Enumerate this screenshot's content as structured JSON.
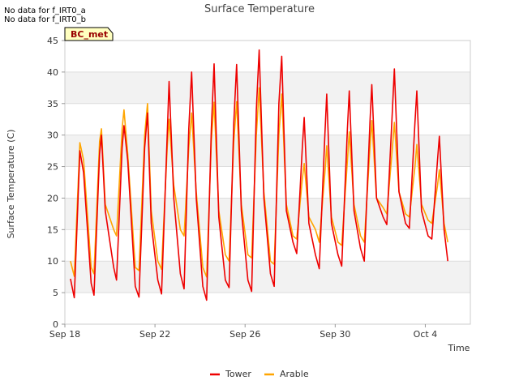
{
  "notes": [
    "No data for f_IRT0_a",
    "No data for f_IRT0_b"
  ],
  "badge": "BC_met",
  "colors": {
    "tower": "#ee0000",
    "arable": "#ffa500",
    "badge_bg": "#ffffc0",
    "badge_text": "#990000",
    "band": "#f2f2f2"
  },
  "chart_data": {
    "type": "line",
    "title": "Surface Temperature",
    "xlabel": "Time",
    "ylabel": "Surface Temperature (C)",
    "ylim": [
      0,
      45
    ],
    "yticks": [
      0,
      5,
      10,
      15,
      20,
      25,
      30,
      35,
      40,
      45
    ],
    "xlim": [
      "2023-09-18",
      "2023-10-06"
    ],
    "xticks": [
      {
        "date": "2023-09-18",
        "label": "Sep 18"
      },
      {
        "date": "2023-09-22",
        "label": "Sep 22"
      },
      {
        "date": "2023-09-26",
        "label": "Sep 26"
      },
      {
        "date": "2023-09-30",
        "label": "Sep 30"
      },
      {
        "date": "2023-10-04",
        "label": "Oct 4"
      }
    ],
    "grid": true,
    "legend": "bottom",
    "series": [
      {
        "name": "Tower",
        "color": "#ee0000",
        "points": [
          [
            "2023-09-18 06:00",
            7.2
          ],
          [
            "2023-09-18 10:00",
            4.2
          ],
          [
            "2023-09-18 16:00",
            27.5
          ],
          [
            "2023-09-18 20:00",
            24
          ],
          [
            "2023-09-19 04:00",
            6.5
          ],
          [
            "2023-09-19 07:00",
            4.6
          ],
          [
            "2023-09-19 13:00",
            27
          ],
          [
            "2023-09-19 15:00",
            30
          ],
          [
            "2023-09-19 19:00",
            18
          ],
          [
            "2023-09-20 04:00",
            9
          ],
          [
            "2023-09-20 07:00",
            7
          ],
          [
            "2023-09-20 13:00",
            28
          ],
          [
            "2023-09-20 15:00",
            31.5
          ],
          [
            "2023-09-20 19:00",
            26
          ],
          [
            "2023-09-21 03:00",
            6
          ],
          [
            "2023-09-21 07:00",
            4.3
          ],
          [
            "2023-09-21 13:00",
            28
          ],
          [
            "2023-09-21 16:00",
            33.5
          ],
          [
            "2023-09-21 20:00",
            16
          ],
          [
            "2023-09-22 03:00",
            7
          ],
          [
            "2023-09-22 07:00",
            4.8
          ],
          [
            "2023-09-22 13:00",
            30
          ],
          [
            "2023-09-22 15:00",
            38.5
          ],
          [
            "2023-09-22 20:00",
            20
          ],
          [
            "2023-09-23 03:00",
            8
          ],
          [
            "2023-09-23 07:00",
            5.6
          ],
          [
            "2023-09-23 12:00",
            31
          ],
          [
            "2023-09-23 15:00",
            40
          ],
          [
            "2023-09-23 20:00",
            20
          ],
          [
            "2023-09-24 03:00",
            6
          ],
          [
            "2023-09-24 07:00",
            3.8
          ],
          [
            "2023-09-24 12:00",
            31
          ],
          [
            "2023-09-24 15:00",
            41.3
          ],
          [
            "2023-09-24 20:00",
            17
          ],
          [
            "2023-09-25 03:00",
            7
          ],
          [
            "2023-09-25 07:00",
            5.8
          ],
          [
            "2023-09-25 12:00",
            32
          ],
          [
            "2023-09-25 15:00",
            41.2
          ],
          [
            "2023-09-25 20:00",
            18
          ],
          [
            "2023-09-26 03:00",
            7
          ],
          [
            "2023-09-26 07:00",
            5.2
          ],
          [
            "2023-09-26 12:00",
            34
          ],
          [
            "2023-09-26 15:00",
            43.5
          ],
          [
            "2023-09-26 20:00",
            20
          ],
          [
            "2023-09-27 03:00",
            8
          ],
          [
            "2023-09-27 07:00",
            6
          ],
          [
            "2023-09-27 12:00",
            35
          ],
          [
            "2023-09-27 15:00",
            42.5
          ],
          [
            "2023-09-27 20:00",
            18
          ],
          [
            "2023-09-28 03:00",
            13
          ],
          [
            "2023-09-28 07:00",
            11.2
          ],
          [
            "2023-09-28 13:00",
            28
          ],
          [
            "2023-09-28 15:00",
            32.8
          ],
          [
            "2023-09-28 20:00",
            16
          ],
          [
            "2023-09-29 03:00",
            11
          ],
          [
            "2023-09-29 07:00",
            8.8
          ],
          [
            "2023-09-29 13:00",
            30
          ],
          [
            "2023-09-29 15:00",
            36.5
          ],
          [
            "2023-09-29 20:00",
            16
          ],
          [
            "2023-09-30 03:00",
            11
          ],
          [
            "2023-09-30 07:00",
            9.2
          ],
          [
            "2023-09-30 13:00",
            31
          ],
          [
            "2023-09-30 15:00",
            37
          ],
          [
            "2023-09-30 20:00",
            18
          ],
          [
            "2023-10-01 03:00",
            12
          ],
          [
            "2023-10-01 07:00",
            10
          ],
          [
            "2023-10-01 13:00",
            32
          ],
          [
            "2023-10-01 15:00",
            38
          ],
          [
            "2023-10-01 20:00",
            20
          ],
          [
            "2023-10-02 03:00",
            17
          ],
          [
            "2023-10-02 07:00",
            15.8
          ],
          [
            "2023-10-02 13:00",
            34
          ],
          [
            "2023-10-02 15:00",
            40.5
          ],
          [
            "2023-10-02 20:00",
            21
          ],
          [
            "2023-10-03 03:00",
            16
          ],
          [
            "2023-10-03 07:00",
            15.2
          ],
          [
            "2023-10-03 13:00",
            32
          ],
          [
            "2023-10-03 15:00",
            37
          ],
          [
            "2023-10-03 20:00",
            18
          ],
          [
            "2023-10-04 03:00",
            14
          ],
          [
            "2023-10-04 07:00",
            13.5
          ],
          [
            "2023-10-04 13:00",
            26
          ],
          [
            "2023-10-04 15:00",
            29.8
          ],
          [
            "2023-10-04 20:00",
            15
          ],
          [
            "2023-10-05 00:00",
            10
          ]
        ]
      },
      {
        "name": "Arable",
        "color": "#ffa500",
        "points": [
          [
            "2023-09-18 06:00",
            10
          ],
          [
            "2023-09-18 10:00",
            7.6
          ],
          [
            "2023-09-18 16:00",
            28.8
          ],
          [
            "2023-09-18 20:00",
            26
          ],
          [
            "2023-09-19 04:00",
            9
          ],
          [
            "2023-09-19 07:00",
            8
          ],
          [
            "2023-09-19 13:00",
            29
          ],
          [
            "2023-09-19 15:00",
            31
          ],
          [
            "2023-09-19 19:00",
            19
          ],
          [
            "2023-09-20 04:00",
            15
          ],
          [
            "2023-09-20 07:00",
            14
          ],
          [
            "2023-09-20 13:00",
            31
          ],
          [
            "2023-09-20 15:00",
            34
          ],
          [
            "2023-09-20 19:00",
            27
          ],
          [
            "2023-09-21 03:00",
            9
          ],
          [
            "2023-09-21 07:00",
            8.5
          ],
          [
            "2023-09-21 13:00",
            30
          ],
          [
            "2023-09-21 16:00",
            35
          ],
          [
            "2023-09-21 20:00",
            18
          ],
          [
            "2023-09-22 03:00",
            10
          ],
          [
            "2023-09-22 07:00",
            8.7
          ],
          [
            "2023-09-22 13:00",
            28
          ],
          [
            "2023-09-22 15:00",
            32.5
          ],
          [
            "2023-09-22 20:00",
            22
          ],
          [
            "2023-09-23 03:00",
            15
          ],
          [
            "2023-09-23 07:00",
            14
          ],
          [
            "2023-09-23 12:00",
            28
          ],
          [
            "2023-09-23 15:00",
            33.5
          ],
          [
            "2023-09-23 20:00",
            21
          ],
          [
            "2023-09-24 03:00",
            9
          ],
          [
            "2023-09-24 07:00",
            7.5
          ],
          [
            "2023-09-24 12:00",
            29
          ],
          [
            "2023-09-24 15:00",
            35.2
          ],
          [
            "2023-09-24 20:00",
            18
          ],
          [
            "2023-09-25 03:00",
            11
          ],
          [
            "2023-09-25 07:00",
            10
          ],
          [
            "2023-09-25 12:00",
            29
          ],
          [
            "2023-09-25 15:00",
            35.3
          ],
          [
            "2023-09-25 20:00",
            19
          ],
          [
            "2023-09-26 03:00",
            11
          ],
          [
            "2023-09-26 07:00",
            10.5
          ],
          [
            "2023-09-26 12:00",
            30
          ],
          [
            "2023-09-26 15:00",
            37.5
          ],
          [
            "2023-09-26 20:00",
            21
          ],
          [
            "2023-09-27 03:00",
            10
          ],
          [
            "2023-09-27 07:00",
            9.5
          ],
          [
            "2023-09-27 12:00",
            30
          ],
          [
            "2023-09-27 15:00",
            36.5
          ],
          [
            "2023-09-27 20:00",
            19
          ],
          [
            "2023-09-28 03:00",
            14
          ],
          [
            "2023-09-28 07:00",
            13.5
          ],
          [
            "2023-09-28 13:00",
            23
          ],
          [
            "2023-09-28 15:00",
            25.5
          ],
          [
            "2023-09-28 20:00",
            17
          ],
          [
            "2023-09-29 03:00",
            15
          ],
          [
            "2023-09-29 07:00",
            13
          ],
          [
            "2023-09-29 13:00",
            24
          ],
          [
            "2023-09-29 15:00",
            28.3
          ],
          [
            "2023-09-29 20:00",
            17
          ],
          [
            "2023-09-30 03:00",
            13
          ],
          [
            "2023-09-30 07:00",
            12.5
          ],
          [
            "2023-09-30 13:00",
            26
          ],
          [
            "2023-09-30 15:00",
            30.5
          ],
          [
            "2023-09-30 20:00",
            19
          ],
          [
            "2023-10-01 03:00",
            14
          ],
          [
            "2023-10-01 07:00",
            13
          ],
          [
            "2023-10-01 13:00",
            28
          ],
          [
            "2023-10-01 15:00",
            32.3
          ],
          [
            "2023-10-01 20:00",
            20
          ],
          [
            "2023-10-02 03:00",
            18.5
          ],
          [
            "2023-10-02 07:00",
            17.5
          ],
          [
            "2023-10-02 13:00",
            28
          ],
          [
            "2023-10-02 15:00",
            32
          ],
          [
            "2023-10-02 20:00",
            21
          ],
          [
            "2023-10-03 03:00",
            17.5
          ],
          [
            "2023-10-03 07:00",
            17
          ],
          [
            "2023-10-03 13:00",
            25
          ],
          [
            "2023-10-03 15:00",
            28.5
          ],
          [
            "2023-10-03 20:00",
            19
          ],
          [
            "2023-10-04 03:00",
            16.5
          ],
          [
            "2023-10-04 07:00",
            16
          ],
          [
            "2023-10-04 13:00",
            22
          ],
          [
            "2023-10-04 15:00",
            24.5
          ],
          [
            "2023-10-04 20:00",
            16
          ],
          [
            "2023-10-05 00:00",
            13
          ]
        ]
      }
    ]
  }
}
